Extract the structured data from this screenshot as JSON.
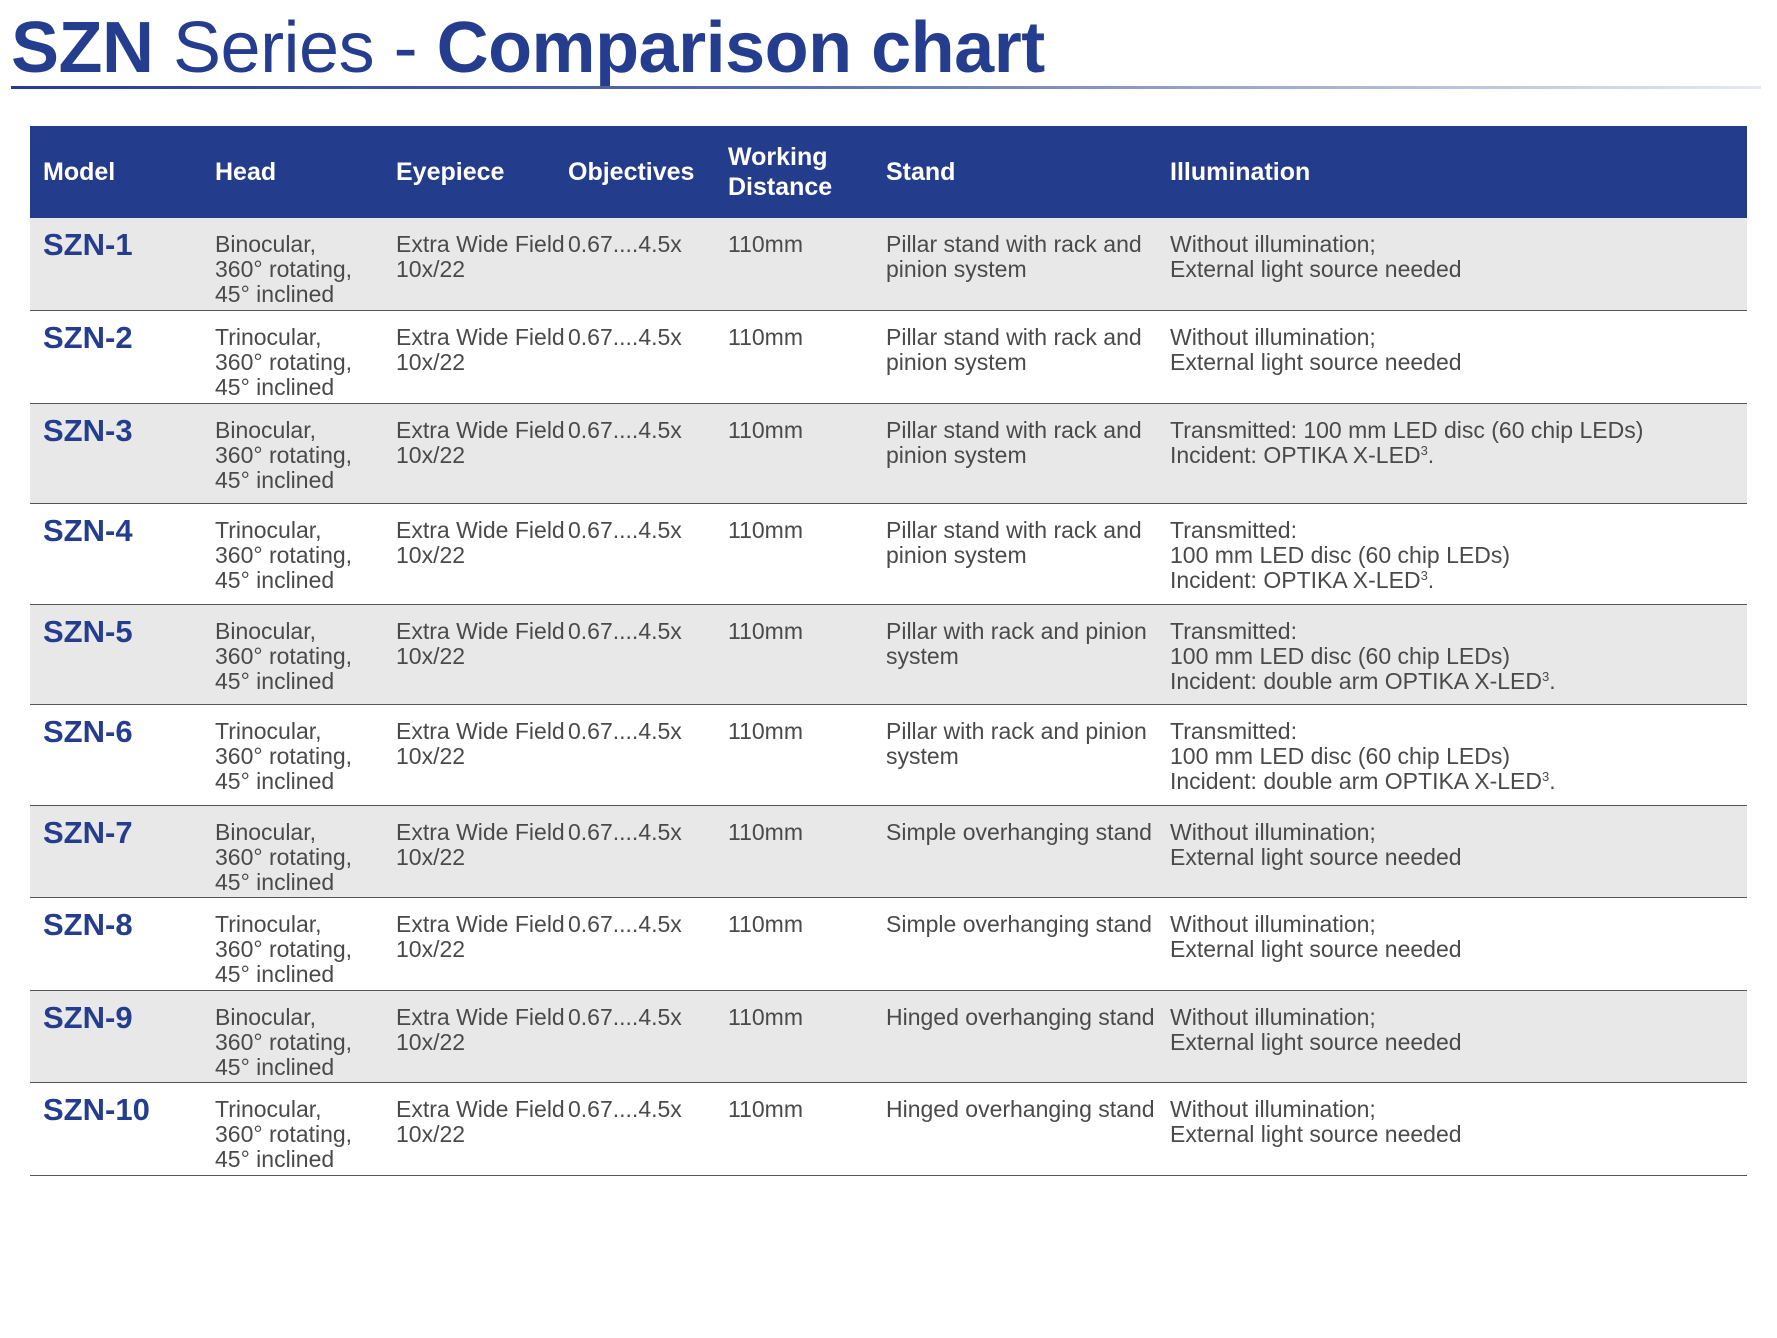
{
  "title": {
    "bold1": "SZN",
    "light": " Series - ",
    "bold2": "Comparison chart"
  },
  "columns": [
    "Model",
    [
      "Head"
    ],
    [
      "Eyepiece"
    ],
    [
      "Objectives"
    ],
    [
      "Working",
      "Distance"
    ],
    [
      "Stand"
    ],
    [
      "Illumination"
    ]
  ],
  "header_labels": [
    "Model",
    "Head",
    "Eyepiece",
    "Objectives",
    "Working",
    "Distance",
    "Stand",
    "Illumination"
  ],
  "rows": [
    {
      "model": "SZN-1",
      "head": [
        "Binocular,",
        "360° rotating,",
        "45° inclined"
      ],
      "eyepiece": [
        "Extra Wide Field",
        "10x/22"
      ],
      "objectives": "0.67....4.5x",
      "working_distance": "110mm",
      "stand": [
        "Pillar stand with rack and",
        "pinion system"
      ],
      "illumination": [
        {
          "t": "Without illumination;"
        },
        {
          "t": "External light source needed"
        }
      ]
    },
    {
      "model": "SZN-2",
      "head": [
        "Trinocular,",
        "360° rotating,",
        "45° inclined"
      ],
      "eyepiece": [
        "Extra Wide Field",
        "10x/22"
      ],
      "objectives": "0.67....4.5x",
      "working_distance": "110mm",
      "stand": [
        "Pillar stand with rack and",
        "pinion system"
      ],
      "illumination": [
        {
          "t": "Without illumination;"
        },
        {
          "t": "External light source needed"
        }
      ]
    },
    {
      "model": "SZN-3",
      "head": [
        "Binocular,",
        "360° rotating,",
        "45° inclined"
      ],
      "eyepiece": [
        "Extra Wide Field",
        "10x/22"
      ],
      "objectives": "0.67....4.5x",
      "working_distance": "110mm",
      "stand": [
        "Pillar stand with rack and",
        "pinion system"
      ],
      "illumination": [
        {
          "t": "Transmitted: 100 mm LED disc (60 chip LEDs)"
        },
        {
          "t": "Incident: OPTIKA X-LED",
          "sup": "3",
          "after": "."
        }
      ]
    },
    {
      "model": "SZN-4",
      "head": [
        "Trinocular,",
        "360° rotating,",
        "45° inclined"
      ],
      "eyepiece": [
        "Extra Wide Field",
        "10x/22"
      ],
      "objectives": "0.67....4.5x",
      "working_distance": "110mm",
      "stand": [
        "Pillar stand with rack and",
        "pinion system"
      ],
      "illumination": [
        {
          "t": "Transmitted:"
        },
        {
          "t": "100 mm LED disc (60 chip LEDs)"
        },
        {
          "t": "Incident: OPTIKA X-LED",
          "sup": "3",
          "after": "."
        }
      ]
    },
    {
      "model": "SZN-5",
      "head": [
        "Binocular,",
        "360° rotating,",
        "45° inclined"
      ],
      "eyepiece": [
        "Extra Wide Field",
        "10x/22"
      ],
      "objectives": "0.67....4.5x",
      "working_distance": "110mm",
      "stand": [
        "Pillar with rack and pinion",
        "system"
      ],
      "illumination": [
        {
          "t": "Transmitted:"
        },
        {
          "t": "100 mm LED disc (60 chip LEDs)"
        },
        {
          "t": "Incident: double arm OPTIKA X-LED",
          "sup": "3",
          "after": "."
        }
      ]
    },
    {
      "model": "SZN-6",
      "head": [
        "Trinocular,",
        "360° rotating,",
        "45° inclined"
      ],
      "eyepiece": [
        "Extra Wide Field",
        "10x/22"
      ],
      "objectives": "0.67....4.5x",
      "working_distance": "110mm",
      "stand": [
        "Pillar with rack and pinion",
        "system"
      ],
      "illumination": [
        {
          "t": "Transmitted:"
        },
        {
          "t": "100 mm LED disc (60 chip LEDs)"
        },
        {
          "t": "Incident: double arm OPTIKA X-LED",
          "sup": "3",
          "after": "."
        }
      ]
    },
    {
      "model": "SZN-7",
      "head": [
        "Binocular,",
        "360° rotating,",
        "45° inclined"
      ],
      "eyepiece": [
        "Extra Wide Field",
        "10x/22"
      ],
      "objectives": "0.67....4.5x",
      "working_distance": "110mm",
      "stand": [
        "Simple overhanging stand"
      ],
      "illumination": [
        {
          "t": "Without illumination;"
        },
        {
          "t": "External light source needed"
        }
      ]
    },
    {
      "model": "SZN-8",
      "head": [
        "Trinocular,",
        "360° rotating,",
        "45° inclined"
      ],
      "eyepiece": [
        "Extra Wide Field",
        "10x/22"
      ],
      "objectives": "0.67....4.5x",
      "working_distance": "110mm",
      "stand": [
        "Simple overhanging stand"
      ],
      "illumination": [
        {
          "t": "Without illumination;"
        },
        {
          "t": "External light source needed"
        }
      ]
    },
    {
      "model": "SZN-9",
      "head": [
        "Binocular,",
        "360° rotating,",
        "45° inclined"
      ],
      "eyepiece": [
        "Extra Wide Field",
        "10x/22"
      ],
      "objectives": "0.67....4.5x",
      "working_distance": "110mm",
      "stand": [
        "Hinged overhanging stand"
      ],
      "illumination": [
        {
          "t": "Without illumination;"
        },
        {
          "t": "External light source needed"
        }
      ]
    },
    {
      "model": "SZN-10",
      "head": [
        "Trinocular,",
        "360° rotating,",
        "45° inclined"
      ],
      "eyepiece": [
        "Extra Wide Field",
        "10x/22"
      ],
      "objectives": "0.67....4.5x",
      "working_distance": "110mm",
      "stand": [
        "Hinged overhanging stand"
      ],
      "illumination": [
        {
          "t": "Without illumination;"
        },
        {
          "t": "External light source needed"
        }
      ]
    }
  ],
  "colors": {
    "brand_blue": "#253d8e",
    "header_bg": "#243c8c",
    "row_shade": "#e8e8e8",
    "body_text": "#4a4a4a"
  }
}
